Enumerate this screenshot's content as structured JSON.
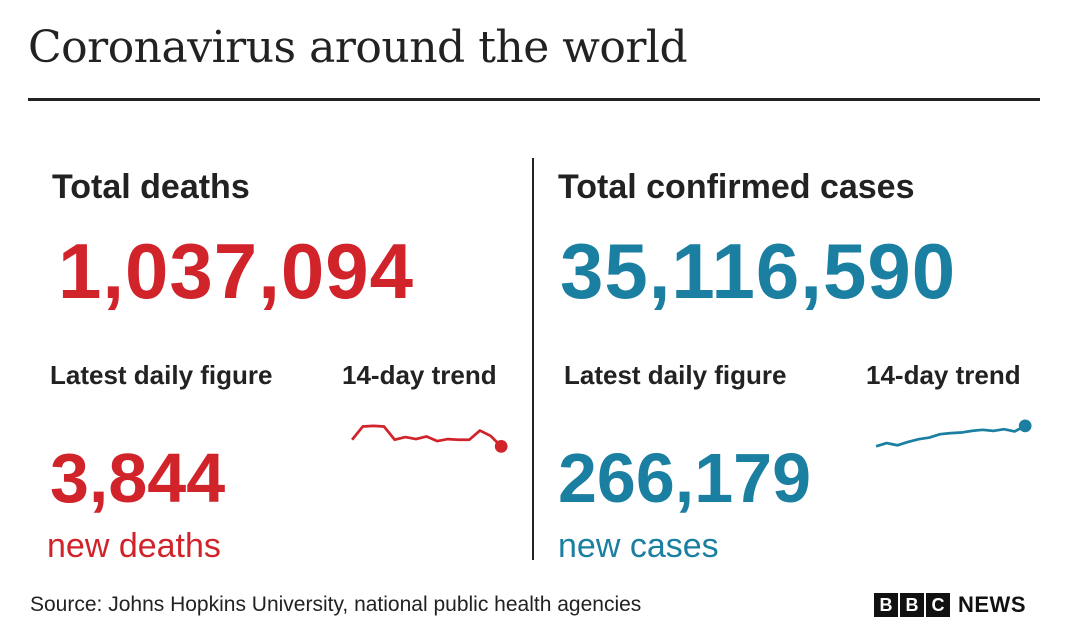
{
  "header": {
    "title": "Coronavirus around the world"
  },
  "colors": {
    "deaths": "#d1232a",
    "cases": "#1b7fa1",
    "text": "#222222"
  },
  "chart_data": [
    {
      "type": "line",
      "panel": "deaths",
      "title": "Total deaths",
      "total": "1,037,094",
      "latest_label": "Latest daily figure",
      "trend_label": "14-day trend",
      "latest_value": "3,844",
      "latest_unit": "new deaths",
      "series": [
        {
          "values": [
            10,
            30,
            31,
            30,
            10,
            14,
            11,
            15,
            8,
            11,
            10,
            10,
            24,
            16,
            0
          ]
        }
      ]
    },
    {
      "type": "line",
      "panel": "cases",
      "title": "Total confirmed cases",
      "total": "35,116,590",
      "latest_label": "Latest daily figure",
      "trend_label": "14-day trend",
      "latest_value": "266,179",
      "latest_unit": "new cases",
      "series": [
        {
          "values": [
            0,
            6,
            2,
            8,
            13,
            16,
            22,
            24,
            25,
            28,
            30,
            28,
            31,
            27,
            37
          ]
        }
      ]
    }
  ],
  "footer": {
    "source": "Source: Johns Hopkins University, national public health agencies",
    "brand_letters": [
      "B",
      "B",
      "C"
    ],
    "brand_word": "NEWS"
  }
}
